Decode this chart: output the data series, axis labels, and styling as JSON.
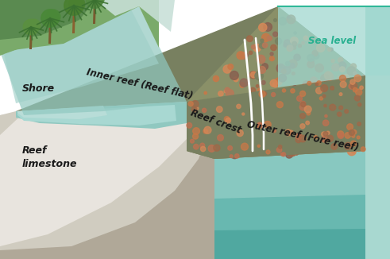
{
  "labels": {
    "shore": "Shore",
    "inner_reef": "Inner reef (Reef flat)",
    "reef_limestone": "Reef\nlimestone",
    "reef_crest": "Reef crest",
    "outer_reef": "Outer reef (Fore reef)",
    "sea_level": "Sea level"
  },
  "colors": {
    "background": "#ffffff",
    "limestone_brown": "#b0a898",
    "limestone_light": "#d0ccc0",
    "limestone_white_curve": "#e8e4de",
    "water_right_light": "#a8d8d0",
    "water_right_mid": "#88c8c0",
    "water_right_deep": "#68b8b0",
    "water_right_deepest": "#50a8a0",
    "reef_green_dark": "#788060",
    "reef_green_mid": "#8a9068",
    "inner_water_teal": "#90c8c0",
    "inner_water_light": "#a8d8d2",
    "shore_green": "#7aaa6a",
    "shore_green_dark": "#5a8a50",
    "shore_green_light": "#8aba78",
    "shore_mist": "#c8e0d8",
    "sea_level_plane": "#a0d8d0",
    "sea_level_border": "#30b898",
    "coral_orange": "#c87848",
    "coral_orange2": "#d48858",
    "coral_brown": "#a06848",
    "coral_dark": "#886050",
    "white_line": "#ffffff",
    "label_color": "#1a1a1a",
    "sea_level_label": "#28b090",
    "trunk_brown": "#7a5a30"
  },
  "figsize": [
    4.91,
    3.26
  ],
  "dpi": 100
}
